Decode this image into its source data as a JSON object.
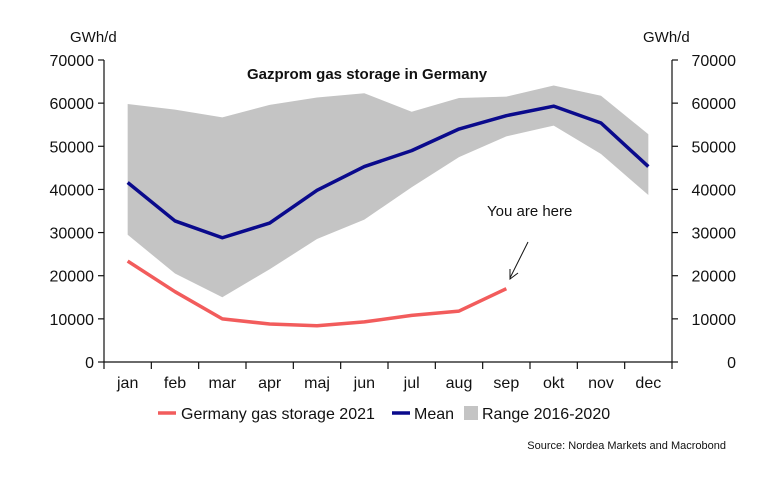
{
  "chart_data": {
    "type": "line",
    "title": "Gazprom gas storage in Germany",
    "ylabel_left": "GWh/d",
    "ylabel_right": "GWh/d",
    "ylim": [
      0,
      70000
    ],
    "yticks": [
      "0",
      "10000",
      "20000",
      "30000",
      "40000",
      "50000",
      "60000",
      "70000"
    ],
    "ytick_values": [
      0,
      10000,
      20000,
      30000,
      40000,
      50000,
      60000,
      70000
    ],
    "categories": [
      "jan",
      "feb",
      "mar",
      "apr",
      "maj",
      "jun",
      "jul",
      "aug",
      "sep",
      "okt",
      "nov",
      "dec"
    ],
    "range": {
      "name": "Range 2016-2020",
      "color": "#c4c4c4",
      "upper": [
        59800,
        58500,
        56700,
        59600,
        61300,
        62300,
        58000,
        61200,
        61500,
        64100,
        61700,
        52800
      ],
      "lower": [
        29500,
        20500,
        15000,
        21500,
        28500,
        33000,
        40500,
        47500,
        52300,
        54800,
        48200,
        38700
      ]
    },
    "series": [
      {
        "name": "Germany gas storage 2021",
        "color": "#f25c5c",
        "values": [
          23400,
          16300,
          10000,
          8800,
          8400,
          9300,
          10800,
          11800,
          17000,
          null,
          null,
          null
        ]
      },
      {
        "name": "Mean",
        "color": "#0a0a8c",
        "values": [
          41600,
          32700,
          28800,
          32200,
          39800,
          45300,
          49000,
          54000,
          57100,
          59300,
          55400,
          45300
        ]
      }
    ],
    "annotation": {
      "text": "You are here",
      "target_category": "sep",
      "target_value": 17000
    },
    "legend": [
      "Germany gas storage 2021",
      "Mean",
      "Range 2016-2020"
    ],
    "legend_position": "bottom",
    "source": "Source: Nordea Markets and Macrobond"
  }
}
